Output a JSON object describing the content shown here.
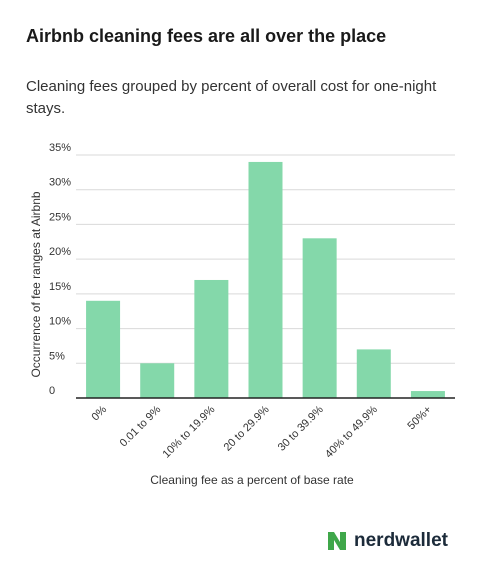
{
  "header": {
    "title": "Airbnb cleaning fees are all over the place",
    "subtitle": "Cleaning fees grouped by percent of overall cost for one-night stays."
  },
  "brand": {
    "name": "nerdwallet",
    "logo_icon": "nerdwallet-logo-icon",
    "logo_color": "#3fa74a"
  },
  "colors": {
    "bar": "#84d8aa",
    "grid": "#d9d9d9",
    "axis": "#222222"
  },
  "chart_data": {
    "type": "bar",
    "title": "",
    "xlabel": "Cleaning fee as a percent of base rate",
    "ylabel": "Occurrence of fee ranges at Airbnb",
    "categories": [
      "0%",
      "0.01 to 9%",
      "10% to 19.9%",
      "20 to 29.9%",
      "30 to 39.9%",
      "40% to 49.9%",
      "50%+"
    ],
    "values": [
      14,
      5,
      17,
      34,
      23,
      7,
      1
    ],
    "ylim": [
      0,
      35
    ],
    "yticks": [
      "0",
      "5%",
      "10%",
      "15%",
      "20%",
      "25%",
      "30%",
      "35%"
    ],
    "ytick_values": [
      0,
      5,
      10,
      15,
      20,
      25,
      30,
      35
    ],
    "grid": true,
    "legend": "none"
  }
}
